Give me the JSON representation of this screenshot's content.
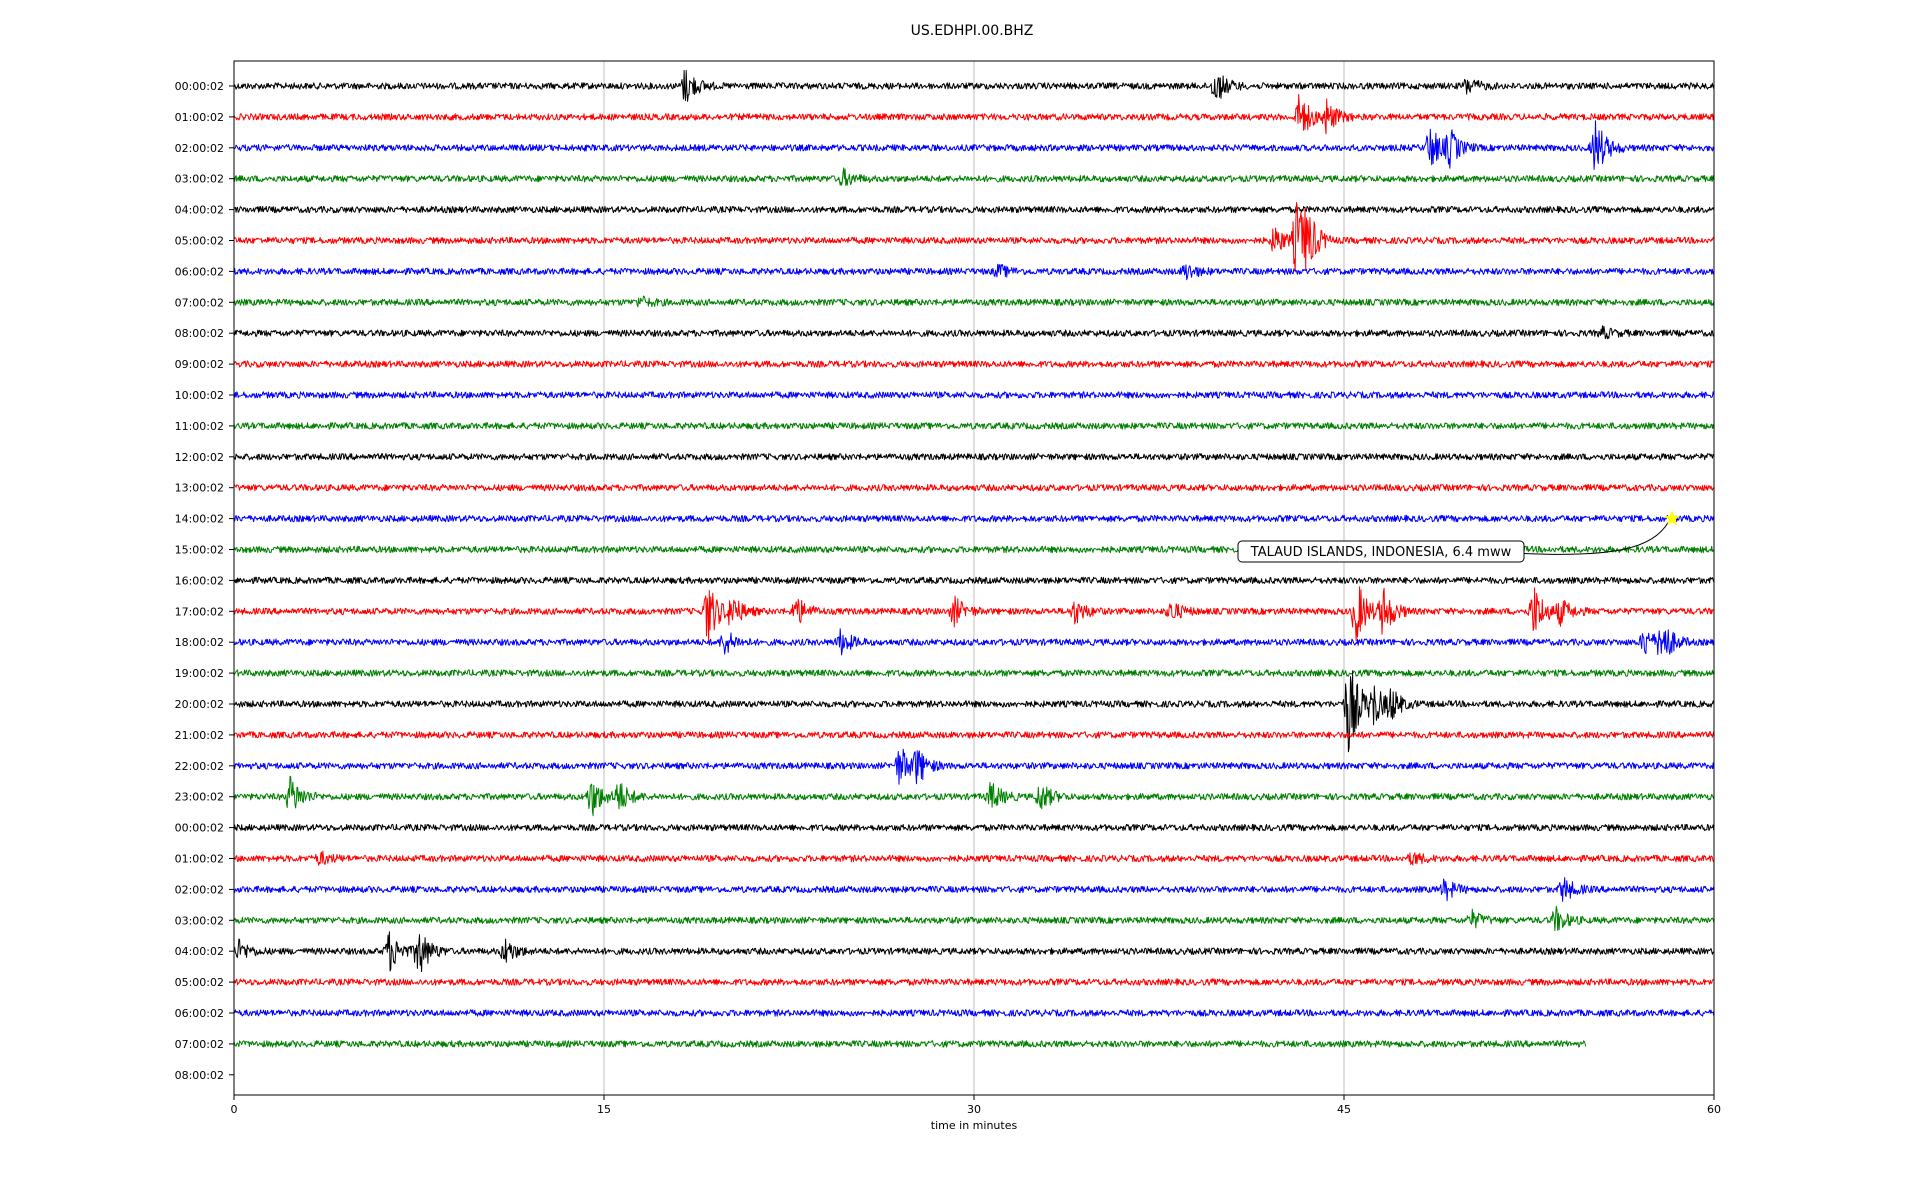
{
  "chart_data": {
    "type": "line",
    "title": "US.EDHPI.00.BHZ",
    "xlabel": "time in minutes",
    "ylabel": "",
    "xlim": [
      0,
      60
    ],
    "x_ticks": [
      "0",
      "15",
      "30",
      "45",
      "60"
    ],
    "grid": "vertical",
    "colors": [
      "#000000",
      "#ff0000",
      "#0000ff",
      "#008000"
    ],
    "rows": [
      {
        "label": "00:00:02",
        "events": [
          {
            "t": 18.3,
            "amp": 0.45
          },
          {
            "t": 39.8,
            "amp": 0.4
          },
          {
            "t": 50.0,
            "amp": 0.2
          }
        ]
      },
      {
        "label": "01:00:02",
        "events": [
          {
            "t": 43.2,
            "amp": 0.6
          },
          {
            "t": 44.3,
            "amp": 0.4
          }
        ]
      },
      {
        "label": "02:00:02",
        "events": [
          {
            "t": 48.5,
            "amp": 0.55
          },
          {
            "t": 49.3,
            "amp": 0.4
          },
          {
            "t": 55.2,
            "amp": 0.7
          }
        ]
      },
      {
        "label": "03:00:02",
        "events": [
          {
            "t": 24.7,
            "amp": 0.2
          }
        ]
      },
      {
        "label": "04:00:02",
        "events": []
      },
      {
        "label": "05:00:02",
        "events": [
          {
            "t": 42.2,
            "amp": 0.35
          },
          {
            "t": 43.1,
            "amp": 1.0
          },
          {
            "t": 43.5,
            "amp": 0.5
          }
        ]
      },
      {
        "label": "06:00:02",
        "events": [
          {
            "t": 31.0,
            "amp": 0.15
          },
          {
            "t": 38.6,
            "amp": 0.2
          }
        ]
      },
      {
        "label": "07:00:02",
        "events": [
          {
            "t": 16.5,
            "amp": 0.12
          }
        ]
      },
      {
        "label": "08:00:02",
        "events": [
          {
            "t": 55.5,
            "amp": 0.12
          }
        ]
      },
      {
        "label": "09:00:02",
        "events": []
      },
      {
        "label": "10:00:02",
        "events": []
      },
      {
        "label": "11:00:02",
        "events": []
      },
      {
        "label": "12:00:02",
        "events": []
      },
      {
        "label": "13:00:02",
        "events": []
      },
      {
        "label": "14:00:02",
        "events": []
      },
      {
        "label": "15:00:02",
        "events": []
      },
      {
        "label": "16:00:02",
        "events": []
      },
      {
        "label": "17:00:02",
        "events": [
          {
            "t": 19.2,
            "amp": 0.8
          },
          {
            "t": 20.2,
            "amp": 0.4
          },
          {
            "t": 22.8,
            "amp": 0.35
          },
          {
            "t": 29.2,
            "amp": 0.35
          },
          {
            "t": 34.1,
            "amp": 0.3
          },
          {
            "t": 38.0,
            "amp": 0.25
          },
          {
            "t": 45.5,
            "amp": 0.8
          },
          {
            "t": 46.6,
            "amp": 0.6
          },
          {
            "t": 52.7,
            "amp": 0.65
          },
          {
            "t": 53.8,
            "amp": 0.3
          }
        ]
      },
      {
        "label": "18:00:02",
        "events": [
          {
            "t": 19.9,
            "amp": 0.3
          },
          {
            "t": 24.6,
            "amp": 0.3
          },
          {
            "t": 57.2,
            "amp": 0.35
          },
          {
            "t": 57.9,
            "amp": 0.55
          }
        ]
      },
      {
        "label": "19:00:02",
        "events": []
      },
      {
        "label": "20:00:02",
        "events": [
          {
            "t": 45.2,
            "amp": 1.25
          },
          {
            "t": 46.2,
            "amp": 0.5
          },
          {
            "t": 46.9,
            "amp": 0.35
          }
        ]
      },
      {
        "label": "21:00:02",
        "events": []
      },
      {
        "label": "22:00:02",
        "events": [
          {
            "t": 27.0,
            "amp": 0.5
          },
          {
            "t": 27.7,
            "amp": 0.4
          }
        ]
      },
      {
        "label": "23:00:02",
        "events": [
          {
            "t": 2.3,
            "amp": 0.5
          },
          {
            "t": 14.5,
            "amp": 0.5
          },
          {
            "t": 15.6,
            "amp": 0.4
          },
          {
            "t": 30.7,
            "amp": 0.35
          },
          {
            "t": 32.7,
            "amp": 0.35
          }
        ]
      },
      {
        "label": "00:00:02",
        "events": []
      },
      {
        "label": "01:00:02",
        "events": [
          {
            "t": 3.5,
            "amp": 0.15
          },
          {
            "t": 47.8,
            "amp": 0.15
          }
        ]
      },
      {
        "label": "02:00:02",
        "events": [
          {
            "t": 49.1,
            "amp": 0.25
          },
          {
            "t": 53.9,
            "amp": 0.3
          }
        ]
      },
      {
        "label": "03:00:02",
        "events": [
          {
            "t": 50.2,
            "amp": 0.2
          },
          {
            "t": 53.6,
            "amp": 0.3
          }
        ]
      },
      {
        "label": "04:00:02",
        "events": [
          {
            "t": 0.2,
            "amp": 0.25
          },
          {
            "t": 6.3,
            "amp": 0.5
          },
          {
            "t": 7.5,
            "amp": 0.6
          },
          {
            "t": 11.0,
            "amp": 0.3
          }
        ]
      },
      {
        "label": "05:00:02",
        "events": []
      },
      {
        "label": "06:00:02",
        "events": []
      },
      {
        "label": "07:00:02",
        "events": [],
        "end": 54.8
      },
      {
        "label": "08:00:02",
        "events": [],
        "end": 0
      }
    ],
    "annotations": [
      {
        "text": "TALAUD ISLANDS, INDONESIA, 6.4 mww",
        "row": 14,
        "t": 58.3,
        "marker": "star",
        "marker_color": "#ffff00"
      }
    ]
  }
}
